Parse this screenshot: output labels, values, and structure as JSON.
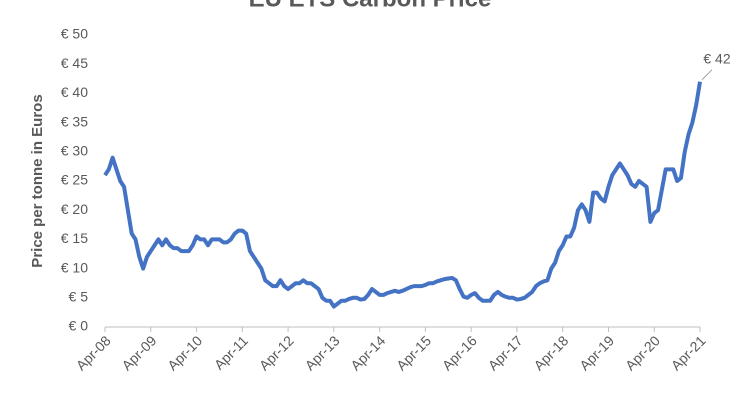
{
  "chart_data": {
    "type": "line",
    "title": "EU ETS Carbon Price",
    "y_label": "Price per tonne in Euros",
    "annotation": "€ 42",
    "categories": [
      "Apr-08",
      null,
      null,
      null,
      null,
      null,
      null,
      null,
      null,
      null,
      null,
      null,
      "Apr-09",
      null,
      null,
      null,
      null,
      null,
      null,
      null,
      null,
      null,
      null,
      null,
      "Apr-10",
      null,
      null,
      null,
      null,
      null,
      null,
      null,
      null,
      null,
      null,
      null,
      "Apr-11",
      null,
      null,
      null,
      null,
      null,
      null,
      null,
      null,
      null,
      null,
      null,
      "Apr-12",
      null,
      null,
      null,
      null,
      null,
      null,
      null,
      null,
      null,
      null,
      null,
      "Apr-13",
      null,
      null,
      null,
      null,
      null,
      null,
      null,
      null,
      null,
      null,
      null,
      "Apr-14",
      null,
      null,
      null,
      null,
      null,
      null,
      null,
      null,
      null,
      null,
      null,
      "Apr-15",
      null,
      null,
      null,
      null,
      null,
      null,
      null,
      null,
      null,
      null,
      null,
      "Apr-16",
      null,
      null,
      null,
      null,
      null,
      null,
      null,
      null,
      null,
      null,
      null,
      "Apr-17",
      null,
      null,
      null,
      null,
      null,
      null,
      null,
      null,
      null,
      null,
      null,
      "Apr-18",
      null,
      null,
      null,
      null,
      null,
      null,
      null,
      null,
      null,
      null,
      null,
      "Apr-19",
      null,
      null,
      null,
      null,
      null,
      null,
      null,
      null,
      null,
      null,
      null,
      "Apr-20",
      null,
      null,
      null,
      null,
      null,
      null,
      null,
      null,
      null,
      null,
      null,
      "Apr-21"
    ],
    "series": [
      {
        "name": "EU ETS Carbon Price",
        "color": "#4472c4",
        "values": [
          26,
          27,
          29,
          27,
          25,
          24,
          20,
          16,
          15,
          12,
          10,
          12,
          13,
          14,
          15,
          14,
          15,
          14,
          13.5,
          13.5,
          13,
          13,
          13,
          14,
          15.5,
          15,
          15,
          14,
          15,
          15,
          15,
          14.5,
          14.5,
          15,
          16,
          16.5,
          16.5,
          16,
          13,
          12,
          11,
          10,
          8,
          7.5,
          7,
          7,
          8,
          7,
          6.5,
          7,
          7.5,
          7.5,
          8,
          7.5,
          7.5,
          7,
          6.5,
          5,
          4.5,
          4.5,
          3.5,
          4,
          4.5,
          4.5,
          4.8,
          5,
          5,
          4.7,
          4.8,
          5.5,
          6.5,
          6,
          5.5,
          5.5,
          5.8,
          6,
          6.2,
          6,
          6.2,
          6.5,
          6.8,
          7,
          7,
          7,
          7.2,
          7.5,
          7.5,
          7.8,
          8,
          8.2,
          8.3,
          8.4,
          8,
          6.5,
          5.2,
          5,
          5.5,
          5.8,
          5,
          4.5,
          4.5,
          4.5,
          5.5,
          6,
          5.5,
          5.2,
          5,
          5,
          4.7,
          4.8,
          5,
          5.5,
          6,
          7,
          7.5,
          7.8,
          8,
          10,
          11,
          13,
          14,
          15.5,
          15.5,
          17,
          20,
          21,
          20,
          18,
          23,
          23,
          22,
          21.5,
          24,
          26,
          27,
          28,
          27,
          26,
          24.5,
          24,
          25,
          24.5,
          24,
          18,
          19.5,
          20,
          23.5,
          27,
          27,
          27,
          25,
          25.5,
          30,
          33,
          35,
          38,
          42
        ]
      }
    ],
    "ylim": [
      0,
      50
    ],
    "yticks": [
      {
        "value": 0,
        "label": "€ 0"
      },
      {
        "value": 5,
        "label": "€ 5"
      },
      {
        "value": 10,
        "label": "€ 10"
      },
      {
        "value": 15,
        "label": "€ 15"
      },
      {
        "value": 20,
        "label": "€ 20"
      },
      {
        "value": 25,
        "label": "€ 25"
      },
      {
        "value": 30,
        "label": "€ 30"
      },
      {
        "value": 35,
        "label": "€ 35"
      },
      {
        "value": 40,
        "label": "€ 40"
      },
      {
        "value": 45,
        "label": "€ 45"
      },
      {
        "value": 50,
        "label": "€ 50"
      }
    ],
    "grid": false
  }
}
